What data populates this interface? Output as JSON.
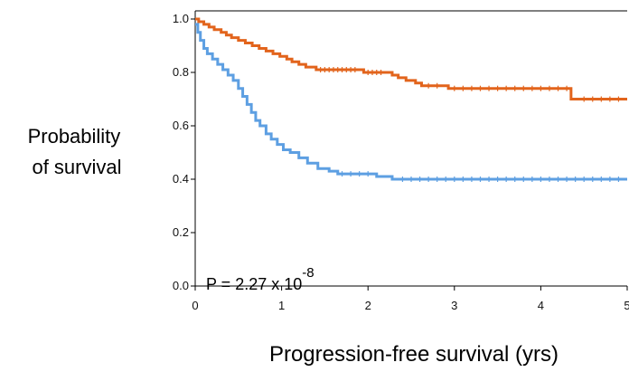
{
  "chart_data": {
    "type": "line",
    "title": "",
    "xlabel": "Progression-free survival (yrs)",
    "ylabel": [
      "Probability",
      "of survival"
    ],
    "xlim": [
      0,
      5
    ],
    "ylim": [
      0,
      1
    ],
    "x_ticks": [
      0,
      1,
      2,
      3,
      4,
      5
    ],
    "y_ticks": [
      0.0,
      0.2,
      0.4,
      0.6,
      0.8,
      1.0
    ],
    "x_tick_labels": [
      "0",
      "1",
      "2",
      "3",
      "4",
      "5"
    ],
    "y_tick_labels": [
      "0.0",
      "0.2",
      "0.4",
      "0.6",
      "0.8",
      "1.0"
    ],
    "grid": false,
    "legend": "none",
    "annotation": {
      "base": "P = 2.27 x 10",
      "exponent": "-8"
    },
    "series": [
      {
        "color": "#e2641c",
        "step": true,
        "points": [
          [
            0,
            1.0
          ],
          [
            0.04,
            0.99
          ],
          [
            0.1,
            0.98
          ],
          [
            0.16,
            0.97
          ],
          [
            0.22,
            0.96
          ],
          [
            0.3,
            0.95
          ],
          [
            0.36,
            0.94
          ],
          [
            0.42,
            0.93
          ],
          [
            0.5,
            0.92
          ],
          [
            0.58,
            0.91
          ],
          [
            0.66,
            0.9
          ],
          [
            0.74,
            0.89
          ],
          [
            0.82,
            0.88
          ],
          [
            0.9,
            0.87
          ],
          [
            0.98,
            0.86
          ],
          [
            1.06,
            0.85
          ],
          [
            1.12,
            0.84
          ],
          [
            1.2,
            0.83
          ],
          [
            1.28,
            0.82
          ],
          [
            1.4,
            0.81
          ],
          [
            1.95,
            0.8
          ],
          [
            2.28,
            0.79
          ],
          [
            2.35,
            0.78
          ],
          [
            2.44,
            0.77
          ],
          [
            2.55,
            0.76
          ],
          [
            2.62,
            0.75
          ],
          [
            2.93,
            0.74
          ],
          [
            4.35,
            0.7
          ],
          [
            5.0,
            0.7
          ]
        ],
        "censor_x": [
          1.45,
          1.5,
          1.55,
          1.6,
          1.65,
          1.7,
          1.75,
          1.8,
          1.85,
          2.0,
          2.05,
          2.1,
          2.15,
          2.7,
          2.8,
          3.0,
          3.1,
          3.2,
          3.3,
          3.4,
          3.5,
          3.6,
          3.7,
          3.8,
          3.9,
          4.0,
          4.1,
          4.2,
          4.3,
          4.5,
          4.6,
          4.7,
          4.8,
          4.9
        ]
      },
      {
        "color": "#5d9fe2",
        "step": true,
        "points": [
          [
            0,
            0.98
          ],
          [
            0.03,
            0.95
          ],
          [
            0.06,
            0.92
          ],
          [
            0.1,
            0.89
          ],
          [
            0.14,
            0.87
          ],
          [
            0.2,
            0.85
          ],
          [
            0.26,
            0.83
          ],
          [
            0.32,
            0.81
          ],
          [
            0.38,
            0.79
          ],
          [
            0.44,
            0.77
          ],
          [
            0.5,
            0.74
          ],
          [
            0.55,
            0.71
          ],
          [
            0.6,
            0.68
          ],
          [
            0.65,
            0.65
          ],
          [
            0.7,
            0.62
          ],
          [
            0.75,
            0.6
          ],
          [
            0.82,
            0.57
          ],
          [
            0.88,
            0.55
          ],
          [
            0.95,
            0.53
          ],
          [
            1.02,
            0.51
          ],
          [
            1.1,
            0.5
          ],
          [
            1.2,
            0.48
          ],
          [
            1.3,
            0.46
          ],
          [
            1.42,
            0.44
          ],
          [
            1.55,
            0.43
          ],
          [
            1.65,
            0.42
          ],
          [
            2.1,
            0.41
          ],
          [
            2.28,
            0.4
          ],
          [
            5.0,
            0.4
          ]
        ],
        "censor_x": [
          1.7,
          1.8,
          1.9,
          2.0,
          2.4,
          2.5,
          2.6,
          2.7,
          2.8,
          2.9,
          3.0,
          3.1,
          3.2,
          3.3,
          3.4,
          3.5,
          3.6,
          3.7,
          3.8,
          3.9,
          4.0,
          4.1,
          4.2,
          4.3,
          4.4,
          4.5,
          4.6,
          4.7,
          4.8,
          4.9
        ]
      }
    ]
  }
}
